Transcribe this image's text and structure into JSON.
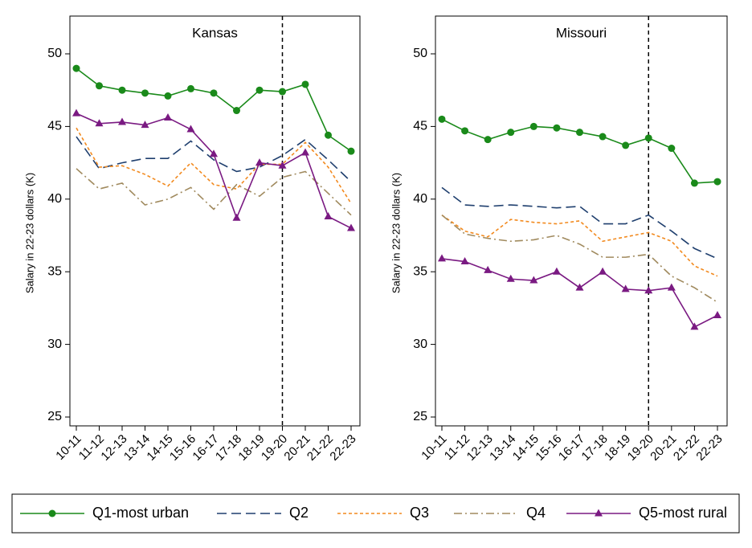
{
  "chart_data": [
    {
      "type": "line",
      "title": "Kansas",
      "y_label": "Salary in 22-23 dollars (K)",
      "categories": [
        "10-11",
        "11-12",
        "12-13",
        "13-14",
        "14-15",
        "15-16",
        "16-17",
        "17-18",
        "18-19",
        "19-20",
        "20-21",
        "21-22",
        "22-23"
      ],
      "vline": "19-20",
      "ylim": [
        25,
        50
      ],
      "yticks": [
        25,
        30,
        35,
        40,
        45,
        50
      ],
      "series": [
        {
          "name": "Q1-most urban",
          "color": "#1a8a1a",
          "dash": "solid",
          "marker": "circle",
          "values": [
            49.0,
            47.8,
            47.5,
            47.3,
            47.1,
            47.6,
            47.3,
            46.1,
            47.5,
            47.4,
            47.9,
            44.4,
            43.3
          ]
        },
        {
          "name": "Q2",
          "color": "#1f3f6e",
          "dash": "longdash",
          "marker": "none",
          "values": [
            44.3,
            42.1,
            42.5,
            42.8,
            42.8,
            44.0,
            42.7,
            41.9,
            42.2,
            43.0,
            44.1,
            42.7,
            41.2
          ]
        },
        {
          "name": "Q3",
          "color": "#f28a1f",
          "dash": "shortdash",
          "marker": "none",
          "values": [
            44.9,
            42.2,
            42.3,
            41.7,
            40.9,
            42.5,
            41.0,
            40.7,
            42.4,
            42.4,
            43.9,
            42.2,
            39.7
          ]
        },
        {
          "name": "Q4",
          "color": "#a08a5e",
          "dash": "dashdot",
          "marker": "none",
          "values": [
            42.1,
            40.7,
            41.1,
            39.6,
            40.0,
            40.8,
            39.3,
            41.0,
            40.2,
            41.5,
            41.9,
            40.4,
            38.9
          ]
        },
        {
          "name": "Q5-most rural",
          "color": "#7a1a82",
          "dash": "solid",
          "marker": "triangle",
          "values": [
            45.9,
            45.2,
            45.3,
            45.1,
            45.6,
            44.8,
            43.1,
            38.7,
            42.5,
            42.3,
            43.2,
            38.8,
            38.0
          ]
        }
      ]
    },
    {
      "type": "line",
      "title": "Missouri",
      "y_label": "Salary in 22-23 dollars (K)",
      "categories": [
        "10-11",
        "11-12",
        "12-13",
        "13-14",
        "14-15",
        "15-16",
        "16-17",
        "17-18",
        "18-19",
        "19-20",
        "20-21",
        "21-22",
        "22-23"
      ],
      "vline": "19-20",
      "ylim": [
        25,
        50
      ],
      "yticks": [
        25,
        30,
        35,
        40,
        45,
        50
      ],
      "series": [
        {
          "name": "Q1-most urban",
          "color": "#1a8a1a",
          "dash": "solid",
          "marker": "circle",
          "values": [
            45.5,
            44.7,
            44.1,
            44.6,
            45.0,
            44.9,
            44.6,
            44.3,
            43.7,
            44.2,
            43.5,
            41.1,
            41.2
          ]
        },
        {
          "name": "Q2",
          "color": "#1f3f6e",
          "dash": "longdash",
          "marker": "none",
          "values": [
            40.8,
            39.6,
            39.5,
            39.6,
            39.5,
            39.4,
            39.5,
            38.3,
            38.3,
            38.9,
            37.8,
            36.6,
            35.9
          ]
        },
        {
          "name": "Q3",
          "color": "#f28a1f",
          "dash": "shortdash",
          "marker": "none",
          "values": [
            38.9,
            37.8,
            37.4,
            38.6,
            38.4,
            38.3,
            38.5,
            37.1,
            37.4,
            37.7,
            37.1,
            35.4,
            34.7
          ]
        },
        {
          "name": "Q4",
          "color": "#a08a5e",
          "dash": "dashdot",
          "marker": "none",
          "values": [
            38.9,
            37.6,
            37.3,
            37.1,
            37.2,
            37.5,
            36.9,
            36.0,
            36.0,
            36.2,
            34.7,
            33.9,
            32.9
          ]
        },
        {
          "name": "Q5-most rural",
          "color": "#7a1a82",
          "dash": "solid",
          "marker": "triangle",
          "values": [
            35.9,
            35.7,
            35.1,
            34.5,
            34.4,
            35.0,
            33.9,
            35.0,
            33.8,
            33.7,
            33.9,
            31.2,
            32.0
          ]
        }
      ]
    }
  ]
}
